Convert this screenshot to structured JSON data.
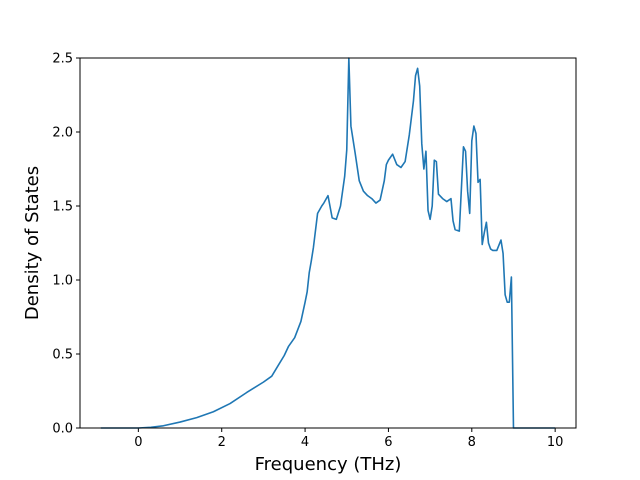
{
  "chart_data": {
    "type": "line",
    "title": "",
    "xlabel": "Frequency (THz)",
    "ylabel": "Density of States",
    "xlim": [
      -1.4,
      10.5
    ],
    "ylim": [
      0,
      2.5
    ],
    "xticks": [
      0,
      2,
      4,
      6,
      8,
      10
    ],
    "yticks": [
      0.0,
      0.5,
      1.0,
      1.5,
      2.0,
      2.5
    ],
    "xtick_labels": [
      "0",
      "2",
      "4",
      "6",
      "8",
      "10"
    ],
    "ytick_labels": [
      "0.0",
      "0.5",
      "1.0",
      "1.5",
      "2.0",
      "2.5"
    ],
    "grid": false,
    "series": [
      {
        "color": "#1f77b4",
        "x": [
          -0.9,
          0.0,
          0.3,
          0.6,
          1.0,
          1.4,
          1.8,
          2.2,
          2.6,
          3.0,
          3.2,
          3.35,
          3.5,
          3.6,
          3.75,
          3.9,
          4.0,
          4.05,
          4.1,
          4.15,
          4.2,
          4.3,
          4.4,
          4.45,
          4.55,
          4.65,
          4.75,
          4.85,
          4.95,
          5.0,
          5.05,
          5.1,
          5.2,
          5.3,
          5.4,
          5.5,
          5.6,
          5.7,
          5.8,
          5.9,
          5.95,
          6.0,
          6.1,
          6.2,
          6.3,
          6.4,
          6.5,
          6.6,
          6.65,
          6.7,
          6.75,
          6.8,
          6.85,
          6.9,
          6.95,
          7.0,
          7.05,
          7.1,
          7.15,
          7.2,
          7.3,
          7.4,
          7.5,
          7.55,
          7.6,
          7.7,
          7.8,
          7.85,
          7.9,
          7.95,
          8.0,
          8.05,
          8.1,
          8.15,
          8.2,
          8.25,
          8.3,
          8.35,
          8.4,
          8.45,
          8.5,
          8.6,
          8.7,
          8.75,
          8.8,
          8.85,
          8.9,
          8.95,
          9.0,
          9.05,
          9.1,
          10.0
        ],
        "values": [
          0.0,
          0.0,
          0.005,
          0.015,
          0.04,
          0.07,
          0.11,
          0.165,
          0.24,
          0.31,
          0.35,
          0.42,
          0.49,
          0.55,
          0.61,
          0.72,
          0.85,
          0.92,
          1.05,
          1.13,
          1.22,
          1.45,
          1.5,
          1.52,
          1.57,
          1.42,
          1.41,
          1.5,
          1.7,
          1.88,
          2.5,
          2.04,
          1.86,
          1.67,
          1.6,
          1.57,
          1.55,
          1.52,
          1.54,
          1.67,
          1.78,
          1.81,
          1.85,
          1.78,
          1.76,
          1.8,
          1.98,
          2.21,
          2.38,
          2.43,
          2.31,
          1.92,
          1.75,
          1.87,
          1.47,
          1.41,
          1.5,
          1.81,
          1.8,
          1.58,
          1.55,
          1.53,
          1.55,
          1.4,
          1.34,
          1.33,
          1.9,
          1.87,
          1.6,
          1.45,
          1.94,
          2.04,
          1.99,
          1.66,
          1.68,
          1.24,
          1.32,
          1.39,
          1.25,
          1.21,
          1.2,
          1.2,
          1.27,
          1.18,
          0.9,
          0.85,
          0.85,
          1.02,
          0.0,
          0.0,
          0.0,
          0.0
        ]
      }
    ]
  }
}
